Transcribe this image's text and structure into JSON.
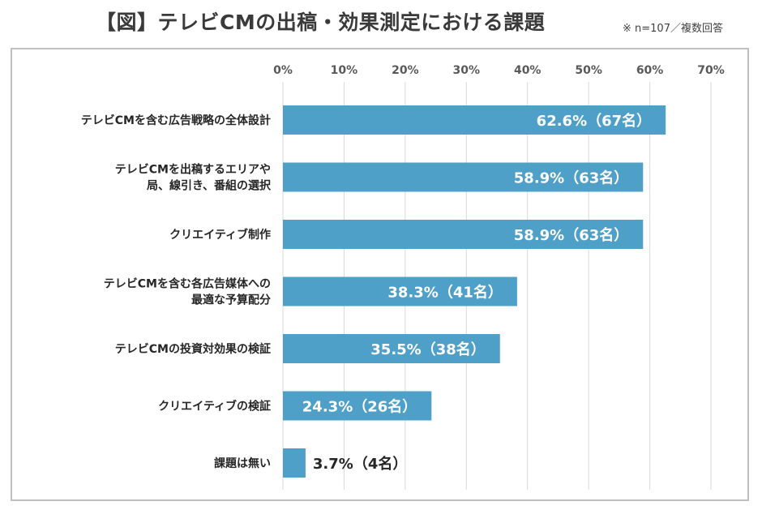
{
  "header": {
    "title": "【図】テレビCMの出稿・効果測定における課題",
    "note": "※ n=107／複数回答"
  },
  "colors": {
    "bar": "#4fa0c8",
    "grid": "#d9d9d9",
    "frame": "#bfbfbf"
  },
  "chart_data": {
    "type": "bar",
    "orientation": "horizontal",
    "title": "【図】テレビCMの出稿・効果測定における課題",
    "xlabel": "",
    "ylabel": "",
    "xlim": [
      0,
      70
    ],
    "x_ticks": [
      "0%",
      "10%",
      "20%",
      "30%",
      "40%",
      "50%",
      "60%",
      "70%"
    ],
    "x_tick_values": [
      0,
      10,
      20,
      30,
      40,
      50,
      60,
      70
    ],
    "grid": true,
    "legend": "none",
    "categories": [
      [
        "テレビCMを含む広告戦略の全体設計"
      ],
      [
        "テレビCMを出稿するエリアや",
        "局、線引き、番組の選択"
      ],
      [
        "クリエイティブ制作"
      ],
      [
        "テレビCMを含む各広告媒体への",
        "最適な予算配分"
      ],
      [
        "テレビCMの投資対効果の検証"
      ],
      [
        "クリエイティブの検証"
      ],
      [
        "課題は無い"
      ]
    ],
    "values": [
      62.6,
      58.9,
      58.9,
      38.3,
      35.5,
      24.3,
      3.7
    ],
    "counts": [
      67,
      63,
      63,
      41,
      38,
      26,
      4
    ],
    "data_labels": [
      "62.6%（67名）",
      "58.9%（63名）",
      "58.9%（63名）",
      "38.3%（41名）",
      "35.5%（38名）",
      "24.3%（26名）",
      "3.7%（4名）"
    ]
  }
}
